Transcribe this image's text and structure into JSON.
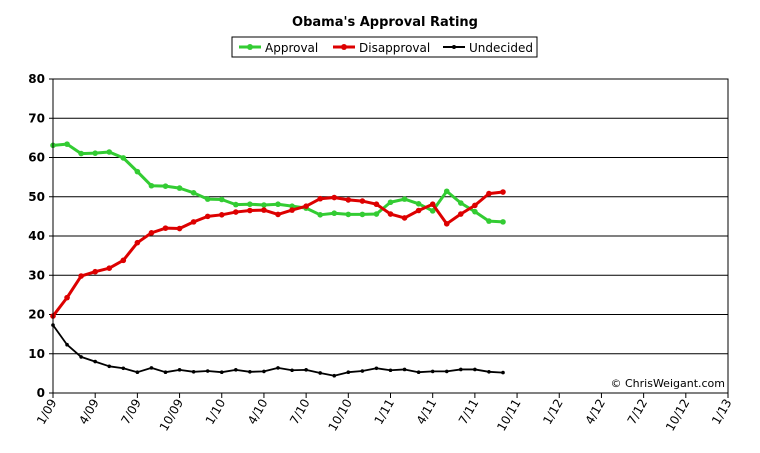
{
  "chart_data": {
    "type": "line",
    "title": "Obama's Approval Rating",
    "xlabel": "",
    "ylabel": "",
    "ylim": [
      0,
      80
    ],
    "yticks": [
      "0",
      "10",
      "20",
      "30",
      "40",
      "50",
      "60",
      "70",
      "80"
    ],
    "xlim": [
      "1/09",
      "1/13"
    ],
    "xticks": [
      "1/09",
      "4/09",
      "7/09",
      "10/09",
      "1/10",
      "4/10",
      "7/10",
      "10/10",
      "1/11",
      "4/11",
      "7/11",
      "10/11",
      "1/12",
      "4/12",
      "7/12",
      "10/12",
      "1/13"
    ],
    "grid": "horizontal",
    "legend_position": "top",
    "credit": "© ChrisWeigant.com",
    "x": [
      "1/09",
      "2/09",
      "3/09",
      "4/09",
      "5/09",
      "6/09",
      "7/09",
      "8/09",
      "9/09",
      "10/09",
      "11/09",
      "12/09",
      "1/10",
      "2/10",
      "3/10",
      "4/10",
      "5/10",
      "6/10",
      "7/10",
      "8/10",
      "9/10",
      "10/10",
      "11/10",
      "12/10",
      "1/11",
      "2/11",
      "3/11",
      "4/11",
      "5/11",
      "6/11",
      "7/11",
      "8/11",
      "9/11"
    ],
    "series": [
      {
        "name": "Approval",
        "color": "#33cc33",
        "values": [
          63.1,
          63.4,
          61.0,
          61.1,
          61.4,
          59.9,
          56.4,
          52.8,
          52.7,
          52.2,
          51.0,
          49.4,
          49.3,
          48.0,
          48.1,
          47.9,
          48.1,
          47.6,
          47.1,
          45.4,
          45.8,
          45.5,
          45.5,
          45.6,
          48.6,
          49.4,
          48.2,
          46.4,
          51.4,
          48.4,
          46.2,
          43.8,
          43.6
        ]
      },
      {
        "name": "Disapproval",
        "color": "#dd0000",
        "values": [
          19.6,
          24.3,
          29.8,
          30.9,
          31.8,
          33.8,
          38.3,
          40.8,
          42.0,
          41.9,
          43.6,
          45.0,
          45.4,
          46.1,
          46.5,
          46.6,
          45.5,
          46.6,
          47.6,
          49.5,
          49.8,
          49.2,
          48.9,
          48.1,
          45.6,
          44.6,
          46.5,
          48.1,
          43.1,
          45.6,
          47.8,
          50.8,
          51.2
        ]
      },
      {
        "name": "Undecided",
        "color": "#000000",
        "values": [
          17.3,
          12.3,
          9.2,
          8.0,
          6.8,
          6.3,
          5.3,
          6.4,
          5.3,
          5.9,
          5.4,
          5.6,
          5.3,
          5.9,
          5.4,
          5.5,
          6.4,
          5.8,
          5.9,
          5.1,
          4.4,
          5.3,
          5.6,
          6.3,
          5.8,
          6.0,
          5.3,
          5.5,
          5.5,
          6.0,
          6.0,
          5.4,
          5.2
        ]
      }
    ]
  }
}
